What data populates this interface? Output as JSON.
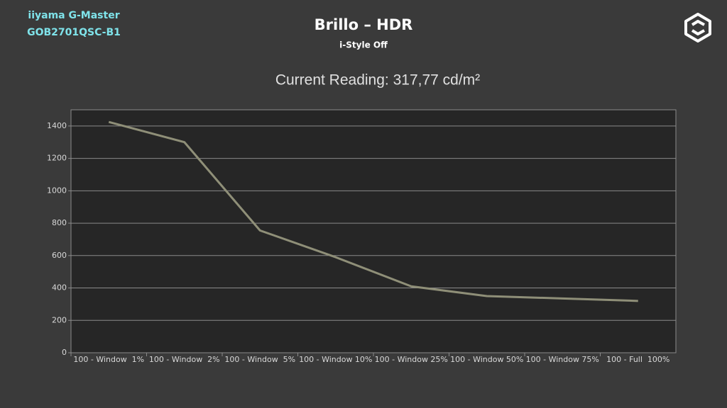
{
  "header": {
    "brand": [
      "iiyama G-Master",
      "GOB2701QSC-B1"
    ]
  },
  "chart_data": {
    "type": "line",
    "title": "Brillo – HDR",
    "subtitle": "i-Style Off",
    "annotation": "Current Reading: 317,77 cd/m²",
    "categories": [
      "100 - Window  1%",
      "100 - Window  2%",
      "100 - Window  5%",
      "100 - Window 10%",
      "100 - Window 25%",
      "100 - Window 50%",
      "100 - Window 75%",
      "100 - Full  100%"
    ],
    "values": [
      1425,
      1300,
      755,
      590,
      410,
      350,
      335,
      320
    ],
    "color": "#8f8f78",
    "ylim": [
      0,
      1500
    ],
    "yticks": [
      0,
      200,
      400,
      600,
      800,
      1000,
      1200,
      1400
    ],
    "grid": true
  }
}
